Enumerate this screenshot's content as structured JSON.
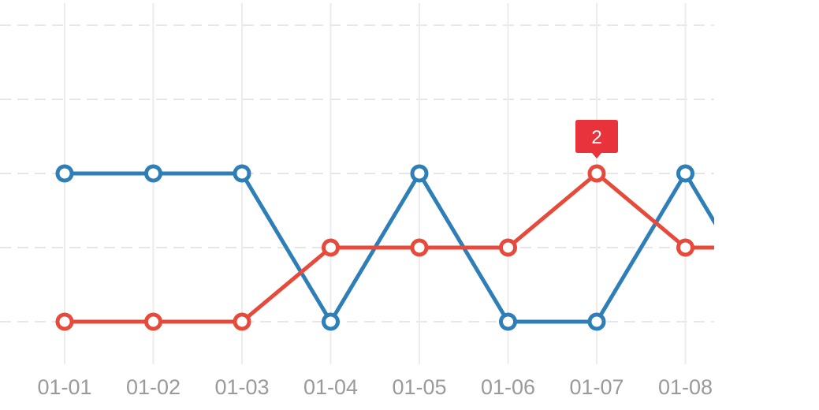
{
  "chart_data": {
    "type": "line",
    "categories": [
      "01-01",
      "01-02",
      "01-03",
      "01-04",
      "01-05",
      "01-06",
      "01-07",
      "01-08"
    ],
    "ylim": [
      -1,
      3
    ],
    "grid": true,
    "series": [
      {
        "color": "#2e7fb8",
        "values": [
          1,
          1,
          1,
          -1,
          1,
          -1,
          -1,
          1
        ]
      },
      {
        "color": "#e64a3b",
        "values": [
          -1,
          -1,
          -1,
          0,
          0,
          0,
          1,
          0
        ]
      }
    ],
    "tooltip": {
      "series_index": 1,
      "category_index": 6,
      "text": "2",
      "color": "#e8323c"
    }
  }
}
